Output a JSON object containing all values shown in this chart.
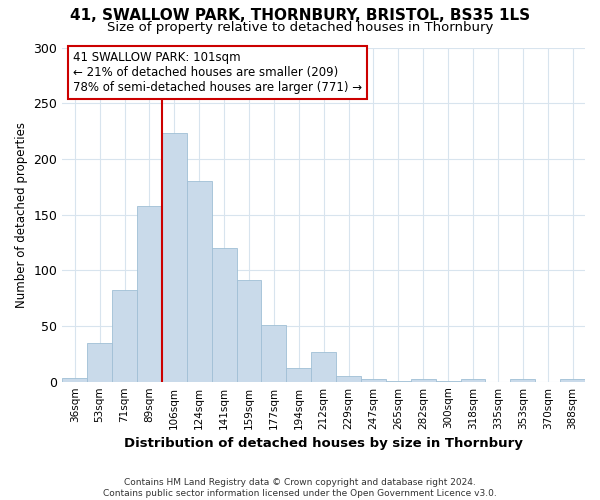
{
  "title1": "41, SWALLOW PARK, THORNBURY, BRISTOL, BS35 1LS",
  "title2": "Size of property relative to detached houses in Thornbury",
  "xlabel": "Distribution of detached houses by size in Thornbury",
  "ylabel": "Number of detached properties",
  "bar_color": "#c9daea",
  "bar_edge_color": "#a0bfd5",
  "categories": [
    "36sqm",
    "53sqm",
    "71sqm",
    "89sqm",
    "106sqm",
    "124sqm",
    "141sqm",
    "159sqm",
    "177sqm",
    "194sqm",
    "212sqm",
    "229sqm",
    "247sqm",
    "265sqm",
    "282sqm",
    "300sqm",
    "318sqm",
    "335sqm",
    "353sqm",
    "370sqm",
    "388sqm"
  ],
  "values": [
    3,
    35,
    82,
    158,
    223,
    180,
    120,
    91,
    51,
    12,
    27,
    5,
    2,
    1,
    2,
    1,
    2,
    0,
    2,
    0,
    2
  ],
  "vline_x_idx": 4,
  "vline_color": "#cc0000",
  "annotation_text": "41 SWALLOW PARK: 101sqm\n← 21% of detached houses are smaller (209)\n78% of semi-detached houses are larger (771) →",
  "annotation_box_color": "#ffffff",
  "annotation_box_edge": "#cc0000",
  "ylim": [
    0,
    300
  ],
  "yticks": [
    0,
    50,
    100,
    150,
    200,
    250,
    300
  ],
  "footer": "Contains HM Land Registry data © Crown copyright and database right 2024.\nContains public sector information licensed under the Open Government Licence v3.0.",
  "bg_color": "#ffffff",
  "grid_color": "#d8e4ee"
}
